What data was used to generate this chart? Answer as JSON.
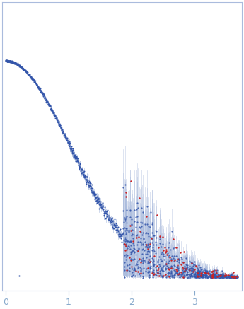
{
  "dot_color_main": "#3355aa",
  "dot_color_outlier": "#cc2222",
  "errbar_color": "#aabbdd",
  "background_color": "#ffffff",
  "figsize": [
    3.45,
    4.37
  ],
  "dpi": 100,
  "seed": 42,
  "xlim": [
    -0.05,
    3.75
  ],
  "ylim": [
    -0.05,
    1.08
  ],
  "xticks": [
    0,
    1,
    2,
    3
  ],
  "tick_color": "#88aacc",
  "spine_color": "#aabbdd"
}
